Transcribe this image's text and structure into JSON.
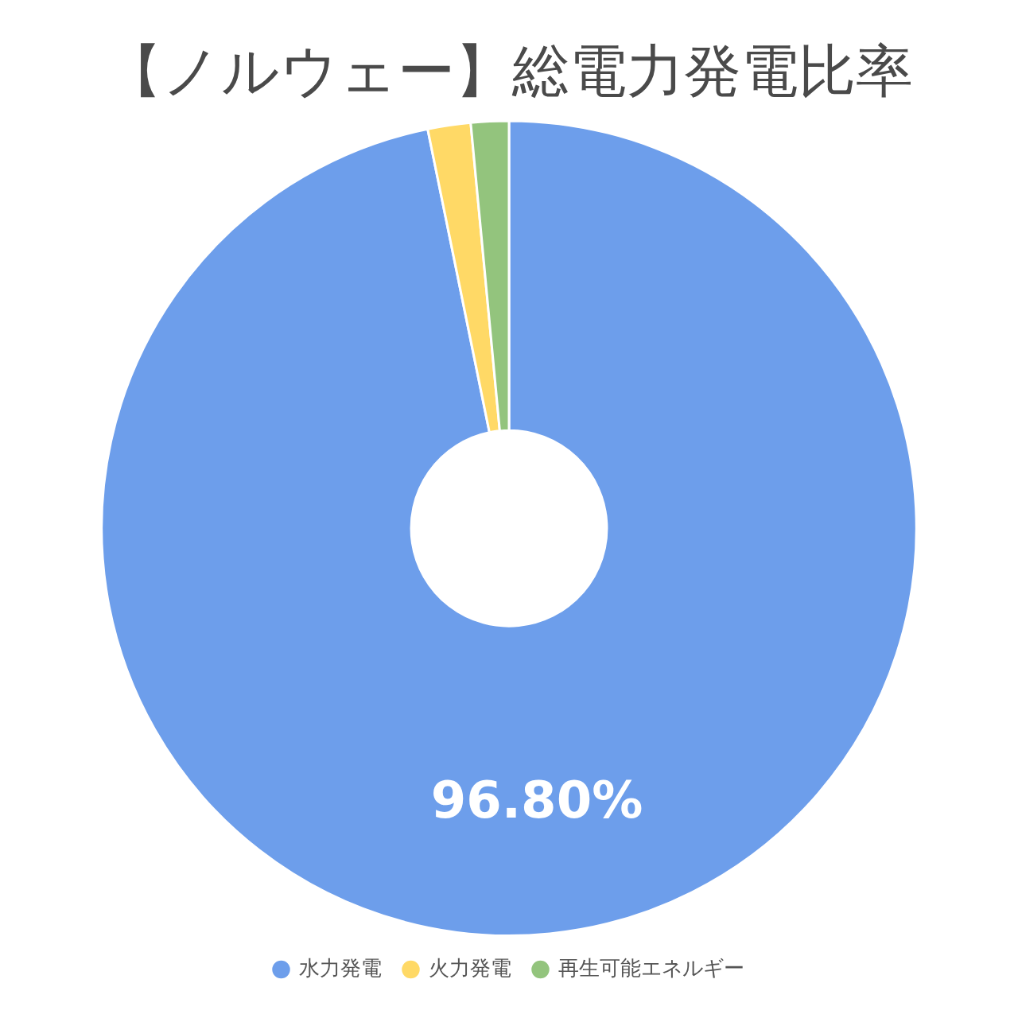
{
  "chart_data": {
    "type": "donut",
    "title": "【ノルウェー】総電力発電比率",
    "categories": [
      "水力発電",
      "火力発電",
      "再生可能エネルギー"
    ],
    "values": [
      96.8,
      1.7,
      1.5
    ],
    "colors": [
      "#6d9eeb",
      "#ffd966",
      "#93c47d"
    ],
    "value_labels": [
      "96.80%",
      null,
      null
    ],
    "legend": "bottom"
  }
}
